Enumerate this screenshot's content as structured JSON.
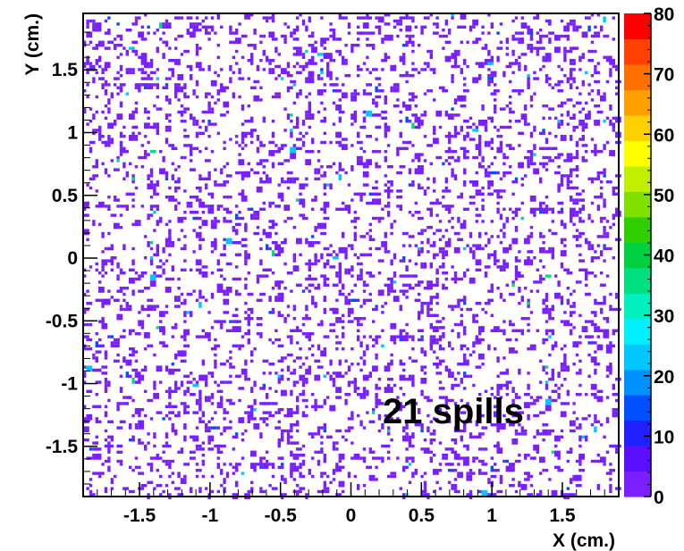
{
  "chart_data": {
    "type": "heatmap",
    "xlabel": "X (cm.)",
    "ylabel": "Y (cm.)",
    "xlim": [
      -1.9,
      1.9
    ],
    "ylim": [
      -1.9,
      1.95
    ],
    "x_ticks": [
      "-1.5",
      "-1",
      "-0.5",
      "0",
      "0.5",
      "1",
      "1.5"
    ],
    "x_tick_values": [
      -1.5,
      -1,
      -0.5,
      0,
      0.5,
      1,
      1.5
    ],
    "y_ticks": [
      "1.5",
      "1",
      "0.5",
      "0",
      "-0.5",
      "-1",
      "-1.5"
    ],
    "y_tick_values": [
      1.5,
      1,
      0.5,
      0,
      -0.5,
      -1,
      -1.5
    ],
    "colorbar": {
      "range": [
        0,
        80
      ],
      "ticks": [
        "80",
        "70",
        "60",
        "50",
        "40",
        "30",
        "20",
        "10",
        "0"
      ],
      "tick_values": [
        80,
        70,
        60,
        50,
        40,
        30,
        20,
        10,
        0
      ],
      "colors": [
        "#7a1fff",
        "#5a0fff",
        "#2020ff",
        "#0050ff",
        "#0090ff",
        "#00c8ff",
        "#00f0ff",
        "#00f0c0",
        "#00e080",
        "#00d040",
        "#30d000",
        "#80e000",
        "#c0f000",
        "#ffff00",
        "#ffd000",
        "#ffa000",
        "#ff7000",
        "#ff4000",
        "#ff0000"
      ]
    },
    "annotation": "21 spills",
    "hit_color": "#7a1fff",
    "grid": false
  }
}
